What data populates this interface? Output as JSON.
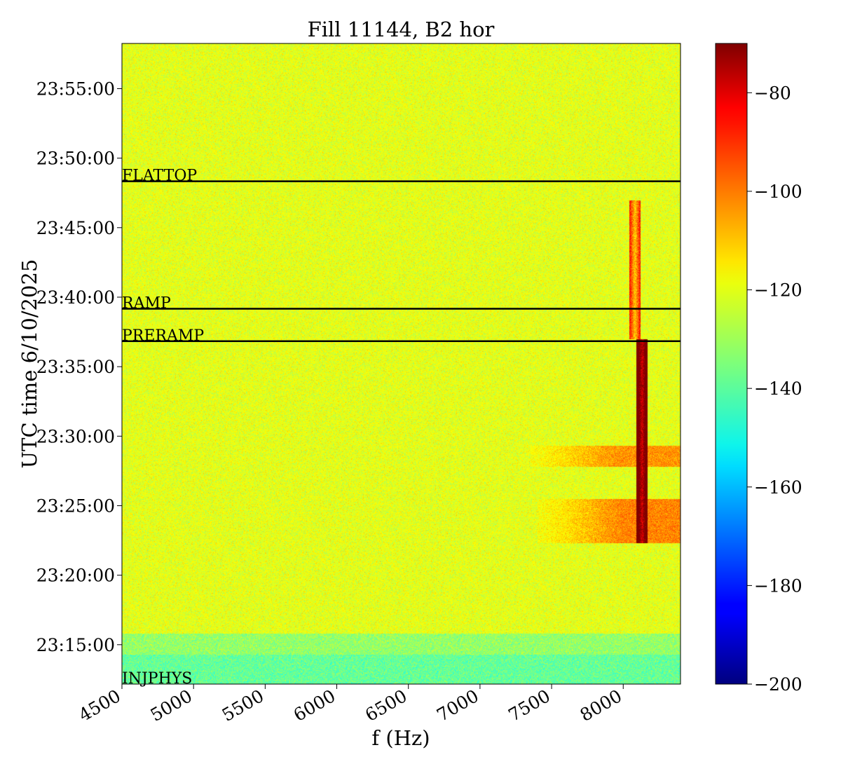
{
  "chart_data": {
    "type": "heatmap",
    "title": "Fill 11144, B2 hor",
    "xlabel": "f (Hz)",
    "ylabel": "UTC time 6/10/2025",
    "x_range": [
      4500,
      8400
    ],
    "x_ticks": [
      4500,
      5000,
      5500,
      6000,
      6500,
      7000,
      7500,
      8000
    ],
    "x_tick_labels": [
      "4500",
      "5000",
      "5500",
      "6000",
      "6500",
      "7000",
      "7500",
      "8000"
    ],
    "y_range": [
      "23:12:10",
      "23:58:15"
    ],
    "y_ticks": [
      "23:15:00",
      "23:20:00",
      "23:25:00",
      "23:30:00",
      "23:35:00",
      "23:40:00",
      "23:45:00",
      "23:50:00",
      "23:55:00"
    ],
    "colormap": "jet",
    "colorbar": {
      "range": [
        -200,
        -70
      ],
      "ticks": [
        -200,
        -180,
        -160,
        -140,
        -120,
        -100,
        -80
      ],
      "tick_labels": [
        "−200",
        "−180",
        "−160",
        "−140",
        "−120",
        "−100",
        "−80"
      ]
    },
    "background_level": -122,
    "features": [
      {
        "desc": "noise band",
        "t_start": "23:12:10",
        "t_end": "23:14:20",
        "level": -138
      },
      {
        "desc": "noise band",
        "t_start": "23:14:20",
        "t_end": "23:15:50",
        "level": -132
      },
      {
        "desc": "excitation block",
        "t_start": "23:22:20",
        "t_end": "23:25:30",
        "f_start": 7400,
        "f_end": 8400,
        "level": -103
      },
      {
        "desc": "excitation block",
        "t_start": "23:27:50",
        "t_end": "23:29:20",
        "f_start": 7350,
        "f_end": 8400,
        "level": -105
      },
      {
        "desc": "tune line",
        "f": 8130,
        "t_start": "23:22:20",
        "t_end": "23:37:00",
        "level": -80
      },
      {
        "desc": "tune line",
        "f": 8080,
        "t_start": "23:37:00",
        "t_end": "23:47:00",
        "level": -112
      }
    ],
    "annotations": [
      {
        "label": "FLATTOP",
        "time": "23:48:20"
      },
      {
        "label": "RAMP",
        "time": "23:39:10"
      },
      {
        "label": "PRERAMP",
        "time": "23:36:50"
      },
      {
        "label": "INJPHYS",
        "time": "23:12:10"
      }
    ],
    "grid": false
  }
}
